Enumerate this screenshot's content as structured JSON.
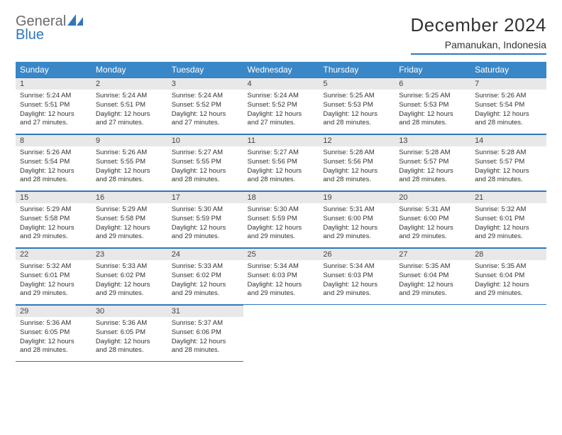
{
  "logo": {
    "text1": "General",
    "text2": "Blue"
  },
  "title": "December 2024",
  "subtitle": "Pamanukan, Indonesia",
  "colors": {
    "header_bg": "#3a87c7",
    "border": "#2f78bd",
    "daynum_bg": "#e8e8e8",
    "text": "#333333"
  },
  "weekdays": [
    "Sunday",
    "Monday",
    "Tuesday",
    "Wednesday",
    "Thursday",
    "Friday",
    "Saturday"
  ],
  "layout": {
    "first_weekday_index": 0,
    "days_in_month": 31
  },
  "days": [
    {
      "n": 1,
      "sunrise": "5:24 AM",
      "sunset": "5:51 PM",
      "daylight": "12 hours and 27 minutes."
    },
    {
      "n": 2,
      "sunrise": "5:24 AM",
      "sunset": "5:51 PM",
      "daylight": "12 hours and 27 minutes."
    },
    {
      "n": 3,
      "sunrise": "5:24 AM",
      "sunset": "5:52 PM",
      "daylight": "12 hours and 27 minutes."
    },
    {
      "n": 4,
      "sunrise": "5:24 AM",
      "sunset": "5:52 PM",
      "daylight": "12 hours and 27 minutes."
    },
    {
      "n": 5,
      "sunrise": "5:25 AM",
      "sunset": "5:53 PM",
      "daylight": "12 hours and 28 minutes."
    },
    {
      "n": 6,
      "sunrise": "5:25 AM",
      "sunset": "5:53 PM",
      "daylight": "12 hours and 28 minutes."
    },
    {
      "n": 7,
      "sunrise": "5:26 AM",
      "sunset": "5:54 PM",
      "daylight": "12 hours and 28 minutes."
    },
    {
      "n": 8,
      "sunrise": "5:26 AM",
      "sunset": "5:54 PM",
      "daylight": "12 hours and 28 minutes."
    },
    {
      "n": 9,
      "sunrise": "5:26 AM",
      "sunset": "5:55 PM",
      "daylight": "12 hours and 28 minutes."
    },
    {
      "n": 10,
      "sunrise": "5:27 AM",
      "sunset": "5:55 PM",
      "daylight": "12 hours and 28 minutes."
    },
    {
      "n": 11,
      "sunrise": "5:27 AM",
      "sunset": "5:56 PM",
      "daylight": "12 hours and 28 minutes."
    },
    {
      "n": 12,
      "sunrise": "5:28 AM",
      "sunset": "5:56 PM",
      "daylight": "12 hours and 28 minutes."
    },
    {
      "n": 13,
      "sunrise": "5:28 AM",
      "sunset": "5:57 PM",
      "daylight": "12 hours and 28 minutes."
    },
    {
      "n": 14,
      "sunrise": "5:28 AM",
      "sunset": "5:57 PM",
      "daylight": "12 hours and 28 minutes."
    },
    {
      "n": 15,
      "sunrise": "5:29 AM",
      "sunset": "5:58 PM",
      "daylight": "12 hours and 29 minutes."
    },
    {
      "n": 16,
      "sunrise": "5:29 AM",
      "sunset": "5:58 PM",
      "daylight": "12 hours and 29 minutes."
    },
    {
      "n": 17,
      "sunrise": "5:30 AM",
      "sunset": "5:59 PM",
      "daylight": "12 hours and 29 minutes."
    },
    {
      "n": 18,
      "sunrise": "5:30 AM",
      "sunset": "5:59 PM",
      "daylight": "12 hours and 29 minutes."
    },
    {
      "n": 19,
      "sunrise": "5:31 AM",
      "sunset": "6:00 PM",
      "daylight": "12 hours and 29 minutes."
    },
    {
      "n": 20,
      "sunrise": "5:31 AM",
      "sunset": "6:00 PM",
      "daylight": "12 hours and 29 minutes."
    },
    {
      "n": 21,
      "sunrise": "5:32 AM",
      "sunset": "6:01 PM",
      "daylight": "12 hours and 29 minutes."
    },
    {
      "n": 22,
      "sunrise": "5:32 AM",
      "sunset": "6:01 PM",
      "daylight": "12 hours and 29 minutes."
    },
    {
      "n": 23,
      "sunrise": "5:33 AM",
      "sunset": "6:02 PM",
      "daylight": "12 hours and 29 minutes."
    },
    {
      "n": 24,
      "sunrise": "5:33 AM",
      "sunset": "6:02 PM",
      "daylight": "12 hours and 29 minutes."
    },
    {
      "n": 25,
      "sunrise": "5:34 AM",
      "sunset": "6:03 PM",
      "daylight": "12 hours and 29 minutes."
    },
    {
      "n": 26,
      "sunrise": "5:34 AM",
      "sunset": "6:03 PM",
      "daylight": "12 hours and 29 minutes."
    },
    {
      "n": 27,
      "sunrise": "5:35 AM",
      "sunset": "6:04 PM",
      "daylight": "12 hours and 29 minutes."
    },
    {
      "n": 28,
      "sunrise": "5:35 AM",
      "sunset": "6:04 PM",
      "daylight": "12 hours and 29 minutes."
    },
    {
      "n": 29,
      "sunrise": "5:36 AM",
      "sunset": "6:05 PM",
      "daylight": "12 hours and 28 minutes."
    },
    {
      "n": 30,
      "sunrise": "5:36 AM",
      "sunset": "6:05 PM",
      "daylight": "12 hours and 28 minutes."
    },
    {
      "n": 31,
      "sunrise": "5:37 AM",
      "sunset": "6:06 PM",
      "daylight": "12 hours and 28 minutes."
    }
  ],
  "labels": {
    "sunrise": "Sunrise:",
    "sunset": "Sunset:",
    "daylight": "Daylight:"
  }
}
